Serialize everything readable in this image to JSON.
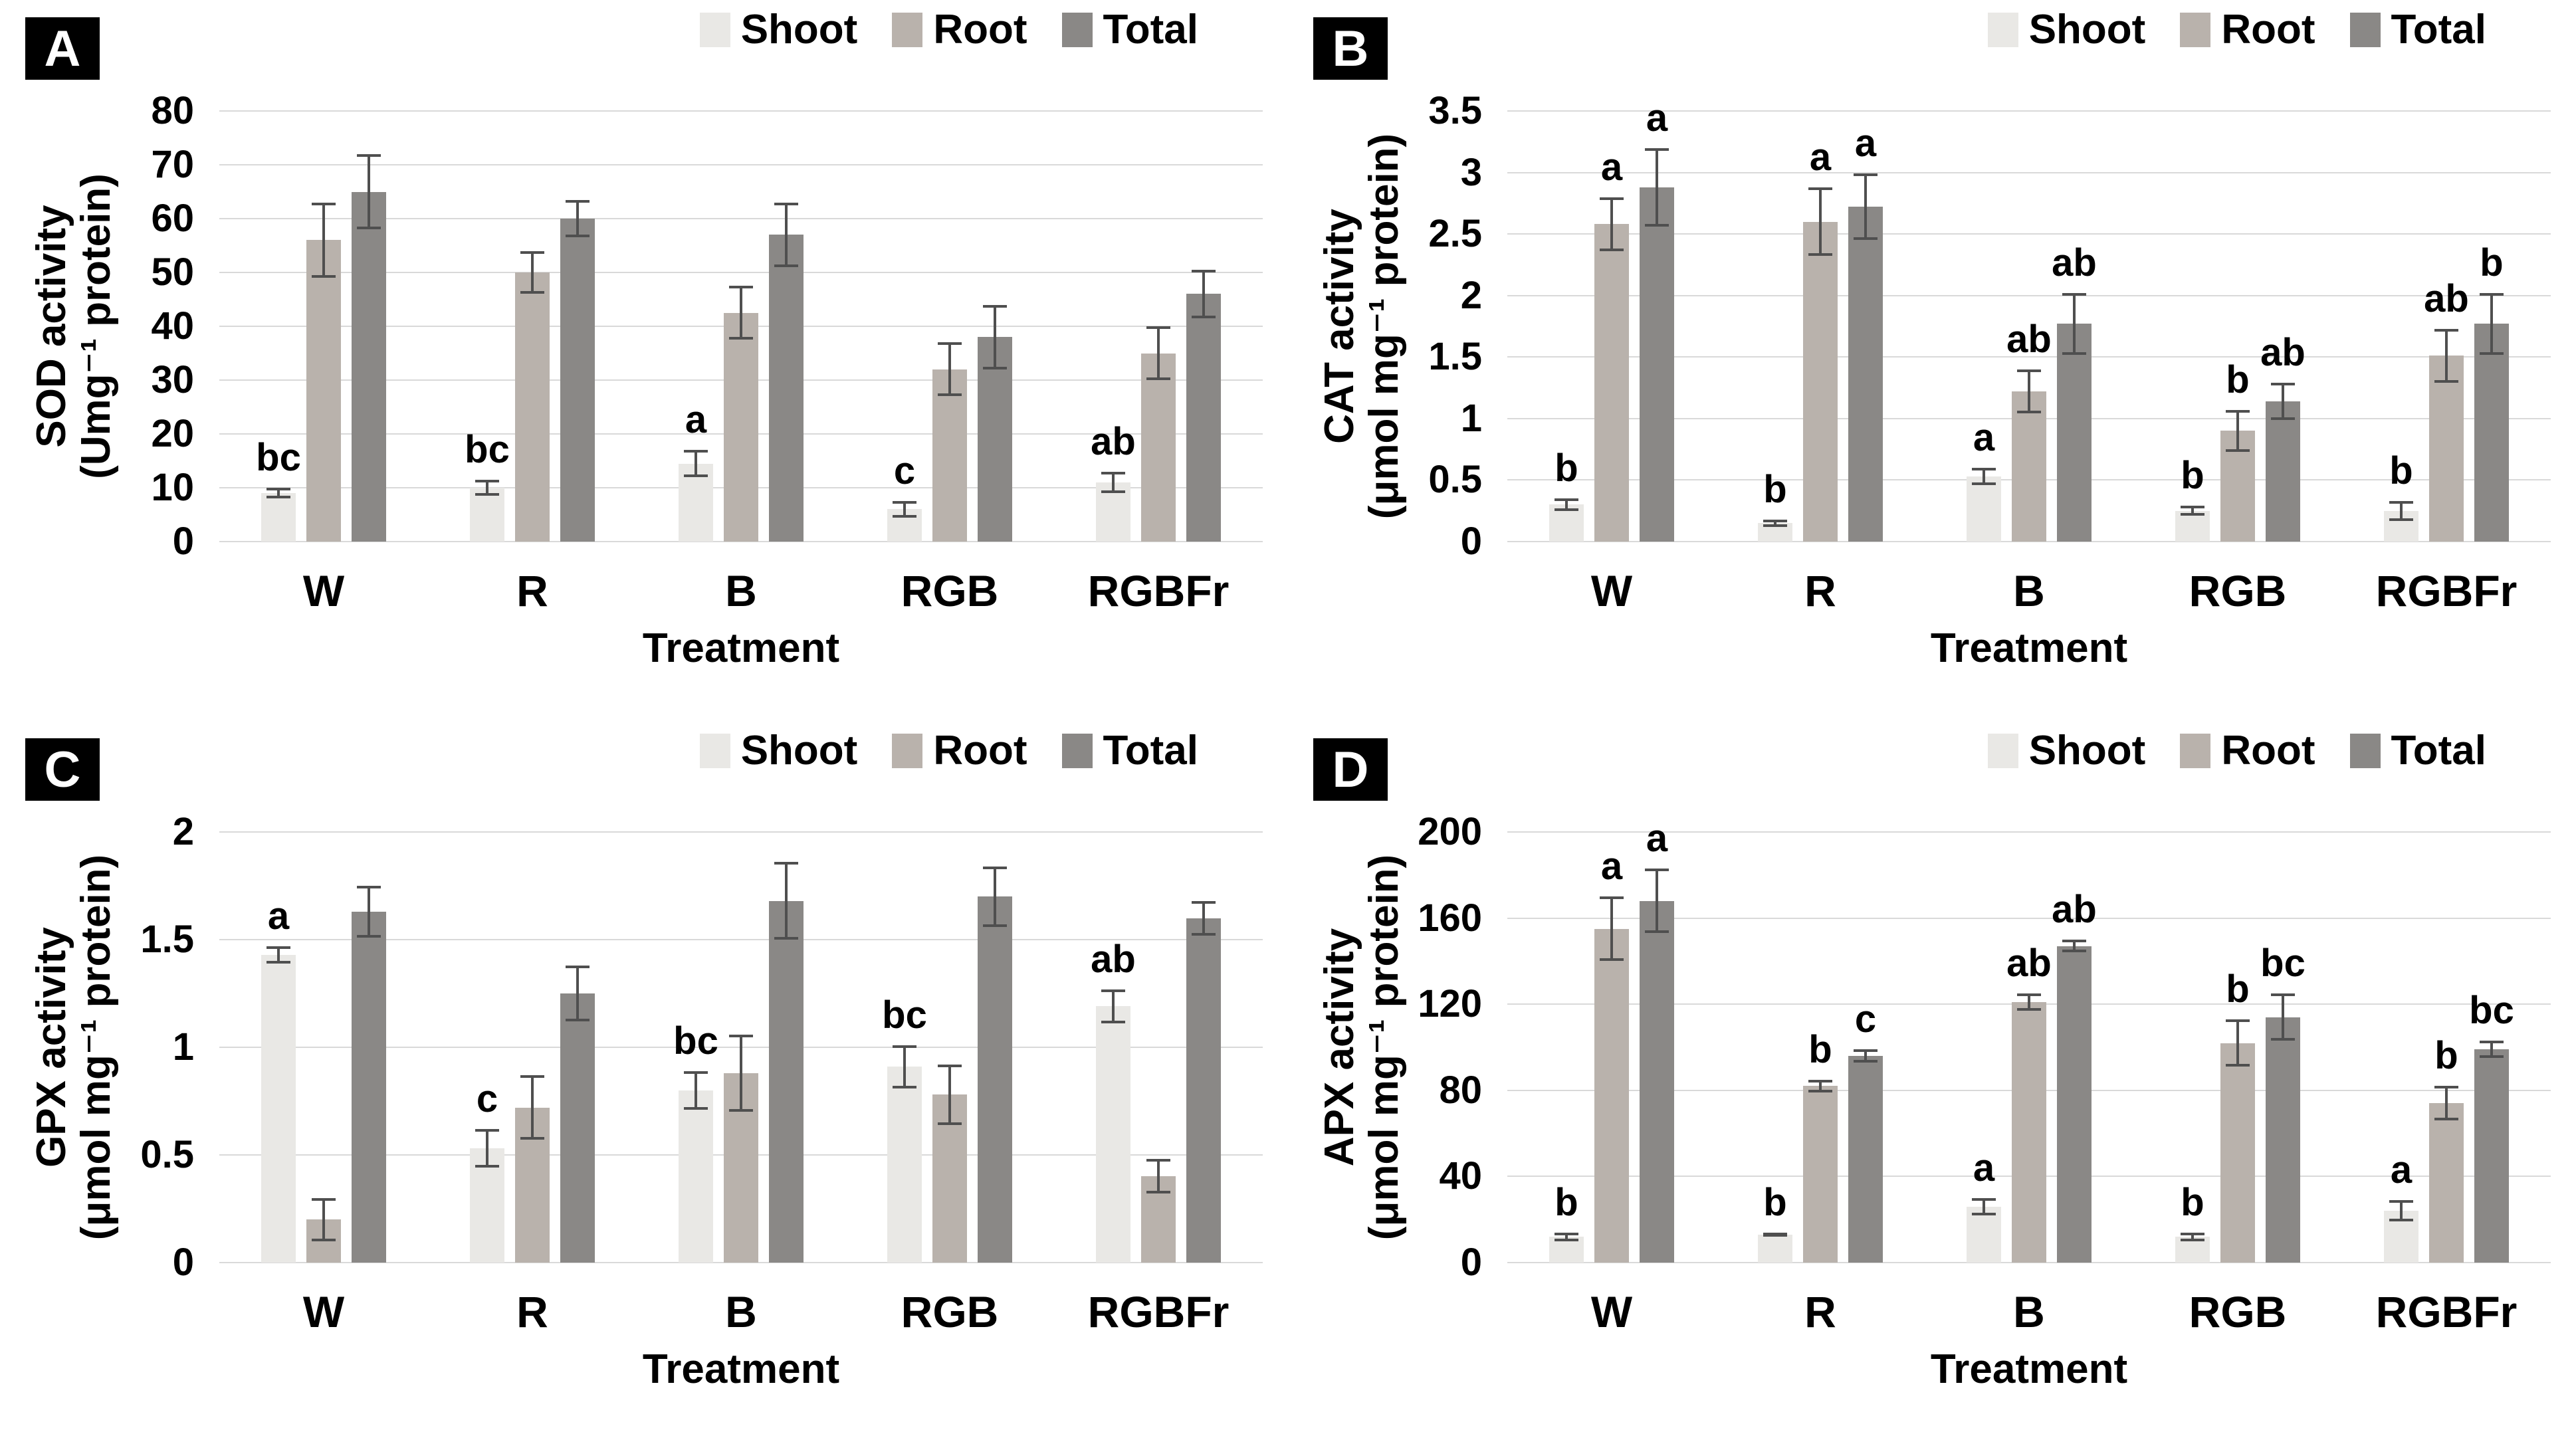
{
  "palette": {
    "shoot": "#e9e8e5",
    "root": "#b9b2ac",
    "total": "#8a8886",
    "gridline": "#d9d9d9",
    "error_bar": "#4f4f4f",
    "badge_bg": "#000000",
    "badge_text": "#ffffff"
  },
  "chart_data": [
    {
      "panel": "A",
      "type": "bar",
      "ylabel": "SOD activity\n(Umg⁻¹ protein)",
      "xlabel": "Treatment",
      "ylim": [
        0,
        80
      ],
      "ytick_labels": [
        "0",
        "10",
        "20",
        "30",
        "40",
        "50",
        "60",
        "70",
        "80"
      ],
      "grid": true,
      "legend_position": "top-right",
      "categories": [
        "W",
        "R",
        "B",
        "RGB",
        "RGBFr"
      ],
      "series": [
        {
          "name": "Shoot",
          "color_key": "shoot",
          "values": [
            9,
            10,
            14.5,
            6,
            11
          ],
          "errors": [
            1,
            1.5,
            2.5,
            1.5,
            2
          ],
          "letters": [
            "bc",
            "bc",
            "a",
            "c",
            "ab"
          ]
        },
        {
          "name": "Root",
          "color_key": "root",
          "values": [
            56,
            50,
            42.5,
            32,
            35
          ],
          "errors": [
            7,
            4,
            5,
            5,
            5
          ],
          "letters": [
            "",
            "",
            "",
            "",
            ""
          ]
        },
        {
          "name": "Total",
          "color_key": "total",
          "values": [
            65,
            60,
            57,
            38,
            46
          ],
          "errors": [
            7,
            3.5,
            6,
            6,
            4.5
          ],
          "letters": [
            "",
            "",
            "",
            "",
            ""
          ]
        }
      ]
    },
    {
      "panel": "B",
      "type": "bar",
      "ylabel": "CAT activity\n(μmol mg⁻¹ protein)",
      "xlabel": "Treatment",
      "ylim": [
        0,
        3.5
      ],
      "ytick_labels": [
        "0",
        "0.5",
        "1",
        "1.5",
        "2",
        "2.5",
        "3",
        "3.5"
      ],
      "grid": true,
      "legend_position": "top-right",
      "categories": [
        "W",
        "R",
        "B",
        "RGB",
        "RGBFr"
      ],
      "series": [
        {
          "name": "Shoot",
          "color_key": "shoot",
          "values": [
            0.3,
            0.15,
            0.53,
            0.25,
            0.25
          ],
          "errors": [
            0.05,
            0.03,
            0.07,
            0.04,
            0.08
          ],
          "letters": [
            "b",
            "b",
            "a",
            "b",
            "b"
          ]
        },
        {
          "name": "Root",
          "color_key": "root",
          "values": [
            2.58,
            2.6,
            1.22,
            0.9,
            1.51
          ],
          "errors": [
            0.22,
            0.28,
            0.18,
            0.17,
            0.22
          ],
          "letters": [
            "a",
            "a",
            "ab",
            "b",
            "ab"
          ]
        },
        {
          "name": "Total",
          "color_key": "total",
          "values": [
            2.88,
            2.72,
            1.77,
            1.14,
            1.77
          ],
          "errors": [
            0.32,
            0.27,
            0.25,
            0.15,
            0.25
          ],
          "letters": [
            "a",
            "a",
            "ab",
            "ab",
            "b"
          ]
        }
      ]
    },
    {
      "panel": "C",
      "type": "bar",
      "ylabel": "GPX activity\n(μmol mg⁻¹ protein)",
      "xlabel": "Treatment",
      "ylim": [
        0,
        2
      ],
      "ytick_labels": [
        "0",
        "0.5",
        "1",
        "1.5",
        "2"
      ],
      "grid": true,
      "legend_position": "top-right",
      "categories": [
        "W",
        "R",
        "B",
        "RGB",
        "RGBFr"
      ],
      "series": [
        {
          "name": "Shoot",
          "color_key": "shoot",
          "values": [
            1.43,
            0.53,
            0.8,
            0.91,
            1.19
          ],
          "errors": [
            0.04,
            0.09,
            0.09,
            0.1,
            0.08
          ],
          "letters": [
            "a",
            "c",
            "bc",
            "bc",
            "ab"
          ]
        },
        {
          "name": "Root",
          "color_key": "root",
          "values": [
            0.2,
            0.72,
            0.88,
            0.78,
            0.4
          ],
          "errors": [
            0.1,
            0.15,
            0.18,
            0.14,
            0.08
          ],
          "letters": [
            "",
            "",
            "",
            "",
            ""
          ]
        },
        {
          "name": "Total",
          "color_key": "total",
          "values": [
            1.63,
            1.25,
            1.68,
            1.7,
            1.6
          ],
          "errors": [
            0.12,
            0.13,
            0.18,
            0.14,
            0.08
          ],
          "letters": [
            "",
            "",
            "",
            "",
            ""
          ]
        }
      ]
    },
    {
      "panel": "D",
      "type": "bar",
      "ylabel": "APX activity\n(μmol mg⁻¹ protein)",
      "xlabel": "Treatment",
      "ylim": [
        0,
        200
      ],
      "ytick_labels": [
        "0",
        "40",
        "80",
        "120",
        "160",
        "200"
      ],
      "grid": true,
      "legend_position": "top-right",
      "categories": [
        "W",
        "R",
        "B",
        "RGB",
        "RGBFr"
      ],
      "series": [
        {
          "name": "Shoot",
          "color_key": "shoot",
          "values": [
            12,
            13,
            26,
            12,
            24
          ],
          "errors": [
            2,
            1,
            4,
            2,
            5
          ],
          "letters": [
            "b",
            "b",
            "a",
            "b",
            "a"
          ]
        },
        {
          "name": "Root",
          "color_key": "root",
          "values": [
            155,
            82,
            121,
            102,
            74
          ],
          "errors": [
            15,
            3,
            4,
            11,
            8
          ],
          "letters": [
            "a",
            "b",
            "ab",
            "b",
            "b"
          ]
        },
        {
          "name": "Total",
          "color_key": "total",
          "values": [
            168,
            96,
            147,
            114,
            99
          ],
          "errors": [
            15,
            3,
            3,
            11,
            4
          ],
          "letters": [
            "a",
            "c",
            "ab",
            "bc",
            "bc"
          ]
        }
      ]
    }
  ]
}
